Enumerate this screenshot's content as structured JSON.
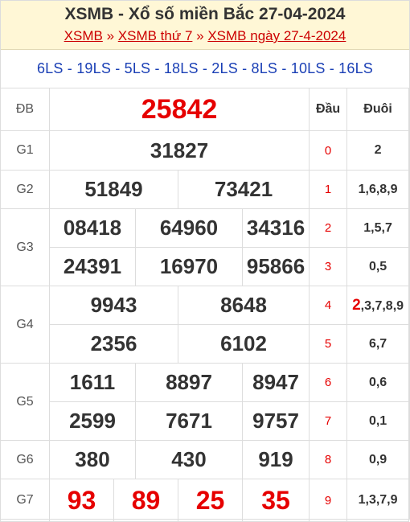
{
  "header": {
    "title": "XSMB - Xổ số miền Bắc 27-04-2024",
    "crumb1": "XSMB",
    "sep": "»",
    "crumb2": "XSMB thứ 7",
    "crumb3": "XSMB ngày 27-4-2024"
  },
  "ls": "6LS - 19LS - 5LS - 18LS - 2LS - 8LS - 10LS - 16LS",
  "cols": {
    "dau": "Đầu",
    "duoi": "Đuôi"
  },
  "prizes": {
    "db": {
      "label": "ĐB",
      "values": [
        "25842"
      ]
    },
    "g1": {
      "label": "G1",
      "values": [
        "31827"
      ]
    },
    "g2": {
      "label": "G2",
      "values": [
        "51849",
        "73421"
      ]
    },
    "g3": {
      "label": "G3",
      "values": [
        "08418",
        "64960",
        "34316",
        "24391",
        "16970",
        "95866"
      ]
    },
    "g4": {
      "label": "G4",
      "values": [
        "9943",
        "8648",
        "2356",
        "6102"
      ]
    },
    "g5": {
      "label": "G5",
      "values": [
        "1611",
        "8897",
        "8947",
        "2599",
        "7671",
        "9757"
      ]
    },
    "g6": {
      "label": "G6",
      "values": [
        "380",
        "430",
        "919"
      ]
    },
    "g7": {
      "label": "G7",
      "values": [
        "93",
        "89",
        "25",
        "35"
      ]
    }
  },
  "loto": [
    {
      "dau": "0",
      "duoi": "2"
    },
    {
      "dau": "1",
      "duoi": "1,6,8,9"
    },
    {
      "dau": "2",
      "duoi": "1,5,7"
    },
    {
      "dau": "3",
      "duoi": "0,5"
    },
    {
      "dau": "4",
      "duoi_hl": "2",
      "duoi": ",3,7,8,9"
    },
    {
      "dau": "5",
      "duoi": "6,7"
    },
    {
      "dau": "6",
      "duoi": "0,6"
    },
    {
      "dau": "7",
      "duoi": "0,1"
    },
    {
      "dau": "8",
      "duoi": "0,9"
    },
    {
      "dau": "9",
      "duoi": "1,3,7,9"
    }
  ]
}
